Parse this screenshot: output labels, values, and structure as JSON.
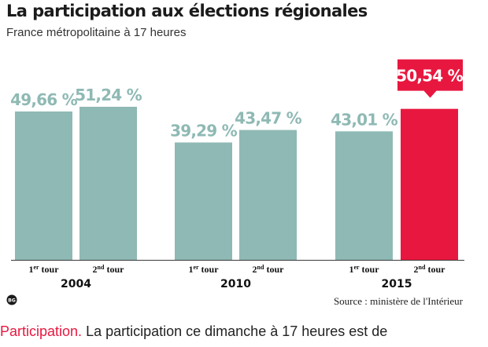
{
  "title": "La participation aux élections régionales",
  "subtitle": "France métropolitaine à 17 heures",
  "source": "Source : ministère de l'Intérieur",
  "article": {
    "keyword": "Participation.",
    "text": " La participation ce dimanche à 17 heures est de"
  },
  "colors": {
    "bar": "#8fb9b4",
    "highlight": "#e8173f",
    "value_text": "#8fb9b4",
    "baseline": "#3a3a3a"
  },
  "chart_data": {
    "type": "bar",
    "title": "La participation aux élections régionales",
    "subtitle": "France métropolitaine à 17 heures",
    "groups": [
      {
        "year": "2004",
        "bars": [
          {
            "tour": "1",
            "sup": "er",
            "label": "tour",
            "value": 49.66,
            "value_label": "49,66 %"
          },
          {
            "tour": "2",
            "sup": "nd",
            "label": "tour",
            "value": 51.24,
            "value_label": "51,24 %"
          }
        ]
      },
      {
        "year": "2010",
        "bars": [
          {
            "tour": "1",
            "sup": "er",
            "label": "tour",
            "value": 39.29,
            "value_label": "39,29 %"
          },
          {
            "tour": "2",
            "sup": "nd",
            "label": "tour",
            "value": 43.47,
            "value_label": "43,47 %"
          }
        ]
      },
      {
        "year": "2015",
        "bars": [
          {
            "tour": "1",
            "sup": "er",
            "label": "tour",
            "value": 43.01,
            "value_label": "43,01 %"
          },
          {
            "tour": "2",
            "sup": "nd",
            "label": "tour",
            "value": 50.54,
            "value_label": "50,54 %",
            "highlight": true
          }
        ]
      }
    ],
    "ylim": [
      0,
      51.24
    ],
    "grid": false,
    "legend": "none"
  }
}
